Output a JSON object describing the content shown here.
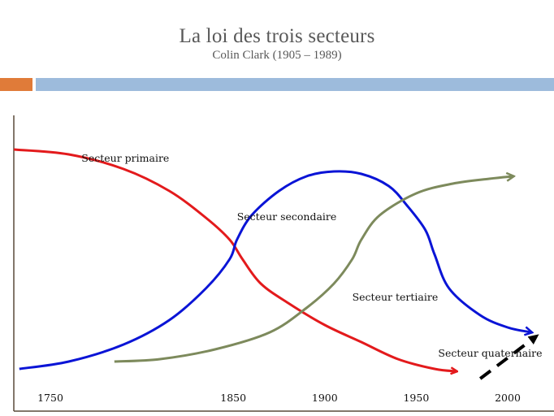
{
  "title": "La loi des trois secteurs",
  "subtitle": "Colin Clark (1905 – 1989)",
  "colors": {
    "accent_orange": "#e07b39",
    "accent_blue": "#9dbbdc",
    "axis": "#5a4a3a"
  },
  "chart_data": {
    "type": "line",
    "title": "La loi des trois secteurs",
    "subtitle": "Colin Clark (1905 – 1989)",
    "xlabel": "",
    "ylabel": "",
    "xlim": [
      1730,
      2020
    ],
    "x_ticks": [
      "1750",
      "1850",
      "1900",
      "1950",
      "2000"
    ],
    "x_tick_values": [
      1750,
      1850,
      1900,
      1950,
      2000
    ],
    "grid": false,
    "series": [
      {
        "name": "Secteur primaire",
        "color": "#e31a1c",
        "arrow": true,
        "dashed": false,
        "x": [
          1730,
          1760,
          1790,
          1815,
          1835,
          1848,
          1855,
          1865,
          1880,
          1900,
          1920,
          1940,
          1960,
          1972
        ],
        "y": [
          0.95,
          0.93,
          0.87,
          0.78,
          0.67,
          0.58,
          0.5,
          0.4,
          0.32,
          0.23,
          0.16,
          0.09,
          0.05,
          0.04
        ]
      },
      {
        "name": "Secteur secondaire",
        "color": "#0a14d6",
        "arrow": true,
        "dashed": false,
        "x": [
          1733,
          1760,
          1790,
          1815,
          1835,
          1848,
          1852,
          1860,
          1875,
          1890,
          1905,
          1920,
          1935,
          1945,
          1955,
          1960,
          1968,
          1985,
          2000,
          2013
        ],
        "y": [
          0.05,
          0.08,
          0.15,
          0.25,
          0.38,
          0.5,
          0.58,
          0.68,
          0.78,
          0.84,
          0.86,
          0.85,
          0.8,
          0.72,
          0.62,
          0.52,
          0.38,
          0.27,
          0.22,
          0.2
        ]
      },
      {
        "name": "Secteur tertiaire",
        "color": "#7d8a5c",
        "arrow": true,
        "dashed": false,
        "x": [
          1785,
          1810,
          1840,
          1870,
          1890,
          1905,
          1915,
          1920,
          1930,
          1950,
          1970,
          1990,
          2003
        ],
        "y": [
          0.08,
          0.09,
          0.13,
          0.2,
          0.3,
          0.4,
          0.5,
          0.58,
          0.68,
          0.77,
          0.81,
          0.83,
          0.84
        ]
      },
      {
        "name": "Secteur quaternaire",
        "color": "#000000",
        "arrow": true,
        "dashed": true,
        "x": [
          1985,
          2015
        ],
        "y": [
          0.01,
          0.18
        ]
      }
    ],
    "annotations": [
      {
        "text": "Secteur primaire",
        "x": 1767,
        "y": 0.9
      },
      {
        "text": "Secteur secondaire",
        "x": 1852,
        "y": 0.66
      },
      {
        "text": "Secteur tertiaire",
        "x": 1915,
        "y": 0.33
      },
      {
        "text": "Secteur quaternaire",
        "x": 1962,
        "y": 0.1
      }
    ]
  }
}
